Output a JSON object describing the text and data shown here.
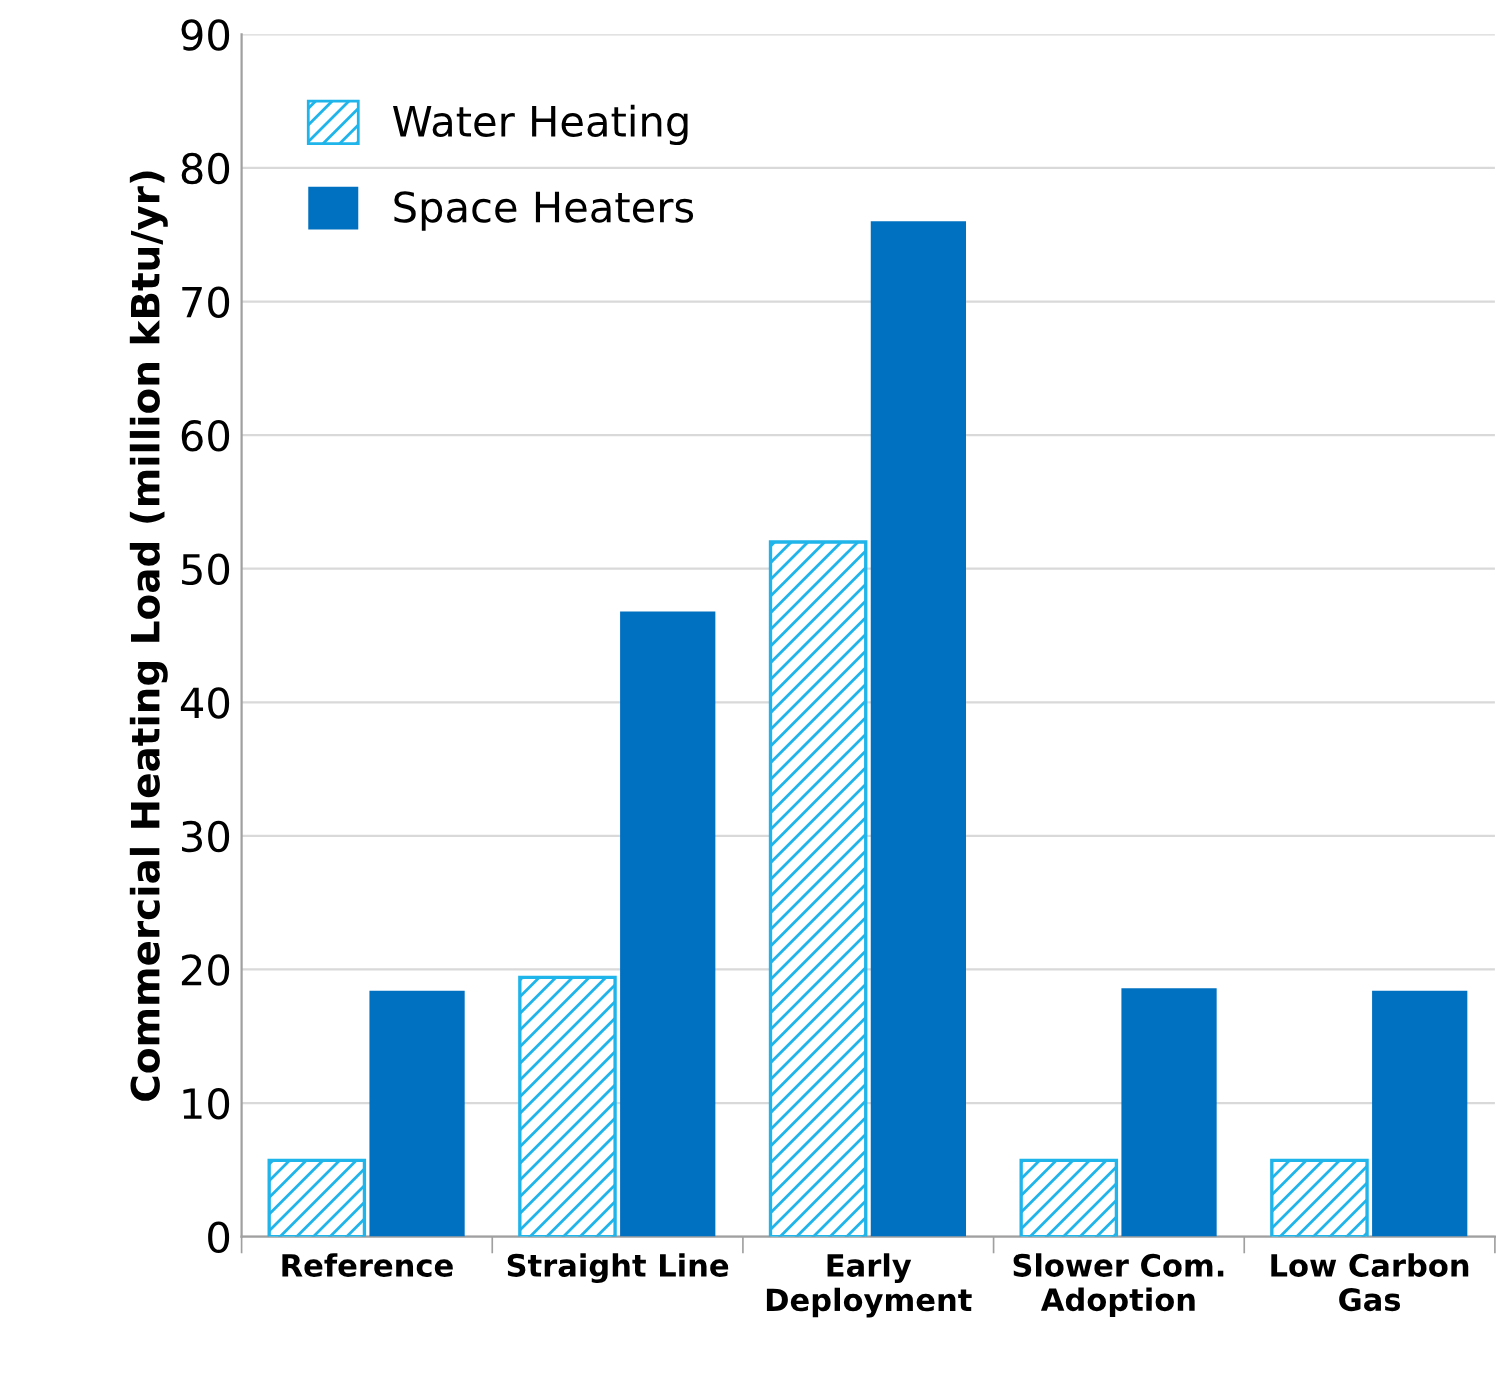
{
  "chart_data": {
    "type": "bar",
    "ylabel": "Commercial Heating Load (million kBtu/yr)",
    "categories": [
      "Reference",
      "Straight Line",
      "Early\nDeployment",
      "Slower Com.\nAdoption",
      "Low Carbon\nGas"
    ],
    "series": [
      {
        "name": "Water Heating",
        "color": "#1fb4ea",
        "values": [
          5.7,
          19.4,
          52,
          5.7,
          5.7
        ]
      },
      {
        "name": "Space Heaters",
        "color": "#0070c0",
        "values": [
          18.4,
          46.8,
          76,
          18.6,
          18.4
        ]
      }
    ],
    "ylim": [
      0,
      90
    ],
    "yticks": [
      0,
      10,
      20,
      30,
      40,
      50,
      60,
      70,
      80,
      90
    ],
    "grid": "y",
    "legend": "top left"
  }
}
